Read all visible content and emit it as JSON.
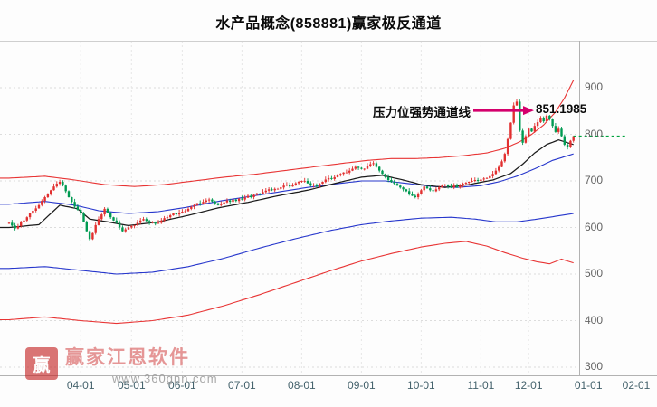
{
  "title": "水产品概念(858881)赢家极反通道",
  "annotation": {
    "label": "压力位强势通道线",
    "value": "851.1985"
  },
  "watermark": {
    "logo_char": "赢",
    "name": "赢家江恩软件",
    "url": "www.360gnn.com"
  },
  "chart_data": {
    "type": "candlestick",
    "title": "水产品概念(858881)赢家极反通道",
    "ylim": [
      300,
      1000
    ],
    "y_ticks": [
      900,
      800,
      700,
      600,
      500,
      400,
      300
    ],
    "x_ticks": [
      {
        "label": "04-01",
        "i": 24
      },
      {
        "label": "05-01",
        "i": 41
      },
      {
        "label": "06-01",
        "i": 58
      },
      {
        "label": "07-01",
        "i": 78
      },
      {
        "label": "08-01",
        "i": 98
      },
      {
        "label": "09-01",
        "i": 118
      },
      {
        "label": "10-01",
        "i": 138
      },
      {
        "label": "11-01",
        "i": 158
      },
      {
        "label": "12-01",
        "i": 174
      },
      {
        "label": "01-01",
        "i": 194
      },
      {
        "label": "02-01",
        "i": 210
      }
    ],
    "current_price": 796,
    "resistance_value": 851.1985,
    "closes": [
      610,
      604,
      598,
      603,
      611,
      615,
      622,
      630,
      636,
      641,
      648,
      657,
      665,
      672,
      680,
      688,
      694,
      698,
      690,
      678,
      665,
      655,
      645,
      638,
      630,
      612,
      592,
      575,
      588,
      605,
      618,
      628,
      640,
      632,
      622,
      615,
      610,
      600,
      592,
      596,
      600,
      603,
      605,
      610,
      615,
      618,
      614,
      610,
      612,
      608,
      610,
      615,
      620,
      622,
      626,
      630,
      628,
      632,
      634,
      635,
      640,
      644,
      648,
      652,
      650,
      655,
      658,
      660,
      656,
      652,
      648,
      650,
      654,
      658,
      655,
      660,
      657,
      662,
      660,
      664,
      668,
      665,
      670,
      673,
      672,
      676,
      679,
      682,
      680,
      683,
      683,
      686,
      690,
      692,
      688,
      692,
      695,
      698,
      700,
      700,
      695,
      690,
      692,
      688,
      694,
      698,
      703,
      706,
      704,
      708,
      712,
      715,
      718,
      718,
      722,
      726,
      730,
      728,
      726,
      726,
      732,
      736,
      738,
      730,
      722,
      715,
      708,
      702,
      698,
      694,
      690,
      686,
      682,
      678,
      672,
      668,
      665,
      672,
      680,
      688,
      684,
      680,
      678,
      682,
      686,
      690,
      692,
      688,
      686,
      690,
      686,
      690,
      694,
      696,
      698,
      700,
      702,
      700,
      703,
      705,
      706,
      710,
      715,
      722,
      730,
      742,
      758,
      790,
      825,
      862,
      870,
      808,
      782,
      796,
      812,
      806,
      818,
      826,
      835,
      828,
      840,
      832,
      818,
      805,
      812,
      796,
      778,
      772,
      786,
      796
    ],
    "channels": [
      {
        "name": "upper-red-rail",
        "color": "channel_red",
        "keypoints": [
          [
            0,
            706
          ],
          [
            12,
            710
          ],
          [
            22,
            702
          ],
          [
            32,
            692
          ],
          [
            42,
            688
          ],
          [
            52,
            692
          ],
          [
            62,
            700
          ],
          [
            72,
            708
          ],
          [
            82,
            714
          ],
          [
            92,
            722
          ],
          [
            102,
            730
          ],
          [
            112,
            738
          ],
          [
            120,
            744
          ],
          [
            128,
            748
          ],
          [
            136,
            748
          ],
          [
            144,
            750
          ],
          [
            152,
            754
          ],
          [
            160,
            760
          ],
          [
            166,
            770
          ],
          [
            171,
            784
          ],
          [
            175,
            800
          ],
          [
            179,
            820
          ],
          [
            183,
            848
          ],
          [
            186,
            878
          ],
          [
            189,
            916
          ]
        ]
      },
      {
        "name": "upper-blue-rail",
        "color": "channel_blue",
        "keypoints": [
          [
            0,
            650
          ],
          [
            12,
            656
          ],
          [
            22,
            648
          ],
          [
            30,
            636
          ],
          [
            40,
            630
          ],
          [
            50,
            634
          ],
          [
            60,
            644
          ],
          [
            70,
            656
          ],
          [
            80,
            666
          ],
          [
            90,
            676
          ],
          [
            100,
            686
          ],
          [
            110,
            694
          ],
          [
            118,
            700
          ],
          [
            126,
            700
          ],
          [
            134,
            694
          ],
          [
            142,
            688
          ],
          [
            150,
            686
          ],
          [
            158,
            690
          ],
          [
            164,
            698
          ],
          [
            170,
            710
          ],
          [
            176,
            726
          ],
          [
            182,
            744
          ],
          [
            189,
            758
          ]
        ]
      },
      {
        "name": "mid-black-line",
        "color": "channel_mid",
        "keypoints": [
          [
            0,
            600
          ],
          [
            10,
            606
          ],
          [
            17,
            648
          ],
          [
            23,
            640
          ],
          [
            27,
            618
          ],
          [
            33,
            612
          ],
          [
            40,
            604
          ],
          [
            50,
            612
          ],
          [
            60,
            626
          ],
          [
            70,
            642
          ],
          [
            80,
            654
          ],
          [
            90,
            668
          ],
          [
            100,
            680
          ],
          [
            110,
            696
          ],
          [
            118,
            708
          ],
          [
            125,
            712
          ],
          [
            132,
            702
          ],
          [
            138,
            692
          ],
          [
            146,
            686
          ],
          [
            154,
            692
          ],
          [
            162,
            702
          ],
          [
            168,
            716
          ],
          [
            172,
            736
          ],
          [
            176,
            760
          ],
          [
            180,
            778
          ],
          [
            184,
            788
          ],
          [
            189,
            778
          ]
        ]
      },
      {
        "name": "lower-blue-rail",
        "color": "channel_blue",
        "keypoints": [
          [
            0,
            512
          ],
          [
            12,
            516
          ],
          [
            24,
            508
          ],
          [
            36,
            500
          ],
          [
            48,
            504
          ],
          [
            60,
            516
          ],
          [
            72,
            534
          ],
          [
            84,
            556
          ],
          [
            96,
            576
          ],
          [
            108,
            594
          ],
          [
            118,
            606
          ],
          [
            128,
            614
          ],
          [
            138,
            620
          ],
          [
            148,
            622
          ],
          [
            156,
            618
          ],
          [
            163,
            612
          ],
          [
            170,
            612
          ],
          [
            177,
            618
          ],
          [
            183,
            624
          ],
          [
            189,
            630
          ]
        ]
      },
      {
        "name": "lower-red-rail",
        "color": "channel_red",
        "keypoints": [
          [
            0,
            402
          ],
          [
            12,
            408
          ],
          [
            24,
            400
          ],
          [
            36,
            394
          ],
          [
            48,
            400
          ],
          [
            60,
            412
          ],
          [
            72,
            432
          ],
          [
            84,
            456
          ],
          [
            96,
            482
          ],
          [
            108,
            508
          ],
          [
            118,
            528
          ],
          [
            128,
            544
          ],
          [
            138,
            558
          ],
          [
            146,
            566
          ],
          [
            153,
            570
          ],
          [
            160,
            560
          ],
          [
            166,
            546
          ],
          [
            172,
            534
          ],
          [
            177,
            526
          ],
          [
            181,
            522
          ],
          [
            185,
            532
          ],
          [
            189,
            524
          ]
        ]
      }
    ],
    "colors": {
      "up": "#e23030",
      "down": "#009a52",
      "channel_red": "#e83434",
      "channel_blue": "#2636cc",
      "channel_mid": "#1a1a1a",
      "arrow": "#d4006c",
      "current_line": "#00a23e",
      "grid": "#dcdcdc",
      "axis": "#b2b2b2"
    }
  }
}
